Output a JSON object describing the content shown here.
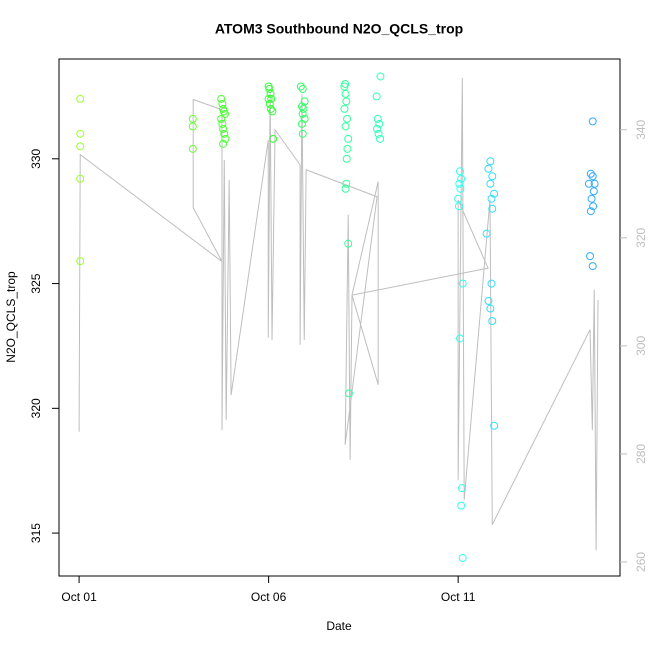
{
  "chart_data": {
    "type": "scatter",
    "title": "ATOM3 Southbound N2O_QCLS_trop",
    "x_label": "Date",
    "y_label": "N2O_QCLS_trop",
    "xlim": [
      0.47,
      15.27
    ],
    "xticks": [
      {
        "value": 1,
        "label": "Oct 01"
      },
      {
        "value": 6,
        "label": "Oct 06"
      },
      {
        "value": 11,
        "label": "Oct 11"
      }
    ],
    "ylim": [
      313.28,
      334.0
    ],
    "yticks": [
      315,
      320,
      325,
      330
    ],
    "y2lim": [
      257.4,
      353.1
    ],
    "y2ticks": [
      260,
      280,
      300,
      320,
      340
    ],
    "y2_color": "#bebebe",
    "series": [
      {
        "type": "line",
        "axis": "y2",
        "color": "#bebebe",
        "x": [
          1.0,
          1.03,
          4.77,
          4.01,
          4.01,
          4.77,
          4.77,
          4.83,
          4.88,
          4.96,
          5.01,
          5.99,
          5.99,
          6.04,
          6.09,
          6.17,
          6.83,
          6.83,
          6.88,
          6.94,
          6.99,
          8.86,
          8.02,
          8.1,
          8.15,
          8.2,
          8.89,
          8.89,
          8.2,
          11.79,
          11.0,
          11.0,
          11.11,
          11.16,
          11.84,
          11.9,
          14.48,
          14.54,
          14.59,
          14.64,
          14.69
        ],
        "values": [
          284.1,
          335.4,
          315.6,
          325.6,
          345.6,
          343.7,
          284.4,
          334.4,
          286.3,
          330.7,
          290.9,
          338.1,
          301.5,
          347.0,
          301.1,
          340.0,
          333.5,
          300.2,
          346.5,
          301.1,
          332.6,
          327.6,
          281.7,
          324.3,
          278.9,
          309.4,
          330.4,
          292.8,
          309.4,
          314.4,
          327.0,
          275.2,
          349.6,
          271.5,
          327.0,
          266.9,
          303.0,
          284.4,
          310.4,
          262.2,
          308.5
        ]
      },
      {
        "type": "scatter",
        "color": "#99ff33",
        "x": [
          1.03,
          1.03,
          1.03,
          1.03,
          1.03
        ],
        "values": [
          332.4,
          331.0,
          330.5,
          329.2,
          325.9
        ]
      },
      {
        "type": "scatter",
        "color": "#66ff33",
        "x": [
          4.0,
          4.0,
          4.0
        ],
        "values": [
          331.6,
          331.3,
          330.4
        ]
      },
      {
        "type": "scatter",
        "color": "#4dff33",
        "x": [
          4.75,
          4.78,
          4.8,
          4.82,
          4.85,
          4.75,
          4.78,
          4.8,
          4.83,
          4.86,
          4.8
        ],
        "values": [
          332.4,
          332.2,
          332.0,
          331.9,
          331.8,
          331.6,
          331.4,
          331.2,
          331.0,
          330.8,
          330.6
        ]
      },
      {
        "type": "scatter",
        "color": "#33ff33",
        "x": [
          6.0,
          6.02,
          6.05,
          6.0,
          6.07,
          6.03,
          6.06,
          6.1,
          6.12
        ],
        "values": [
          332.9,
          332.8,
          332.6,
          332.4,
          332.4,
          332.2,
          332.0,
          331.9,
          330.8
        ]
      },
      {
        "type": "scatter",
        "color": "#33ff66",
        "x": [
          6.85,
          6.9,
          6.95,
          6.88,
          6.92,
          6.9,
          6.95,
          6.88,
          6.9
        ],
        "values": [
          332.9,
          332.8,
          332.3,
          332.1,
          332.0,
          331.8,
          331.6,
          331.4,
          331.0
        ]
      },
      {
        "type": "scatter",
        "color": "#33ff99",
        "x": [
          8.02,
          8.0,
          8.03,
          8.05,
          8.0,
          8.07,
          8.03,
          8.1,
          8.08,
          8.06,
          8.05,
          8.03,
          8.1,
          8.12
        ],
        "values": [
          333.0,
          332.9,
          332.6,
          332.3,
          332.0,
          331.6,
          331.3,
          330.8,
          330.4,
          330.0,
          329.0,
          328.8,
          326.6,
          320.6
        ]
      },
      {
        "type": "scatter",
        "color": "#33ffbb",
        "x": [
          8.95,
          8.85,
          8.88,
          8.92,
          8.86,
          8.9,
          8.94
        ],
        "values": [
          333.3,
          332.5,
          331.6,
          331.4,
          331.2,
          331.0,
          330.8
        ]
      },
      {
        "type": "scatter",
        "color": "#33ffee",
        "x": [
          11.05,
          11.08,
          11.03,
          11.06,
          11.0,
          11.02,
          11.12,
          11.05,
          11.1,
          11.08,
          11.12
        ],
        "values": [
          329.5,
          329.2,
          329.0,
          328.8,
          328.4,
          328.1,
          325.0,
          322.8,
          316.8,
          316.1,
          314.0
        ]
      },
      {
        "type": "scatter",
        "color": "#33ddff",
        "x": [
          11.85,
          11.8,
          11.9,
          11.85,
          11.95,
          11.88,
          11.9,
          11.75,
          11.88,
          11.8,
          11.85,
          11.9,
          11.95
        ],
        "values": [
          329.9,
          329.6,
          329.3,
          329.0,
          328.6,
          328.4,
          328.0,
          327.0,
          325.0,
          324.3,
          324.0,
          323.5,
          319.3
        ]
      },
      {
        "type": "scatter",
        "color": "#33aaff",
        "x": [
          14.55,
          14.5,
          14.55,
          14.6,
          14.45,
          14.58,
          14.52,
          14.56,
          14.5,
          14.48,
          14.55
        ],
        "values": [
          331.5,
          329.4,
          329.3,
          329.0,
          329.0,
          328.7,
          328.4,
          328.1,
          327.9,
          326.1,
          325.7
        ]
      }
    ]
  }
}
